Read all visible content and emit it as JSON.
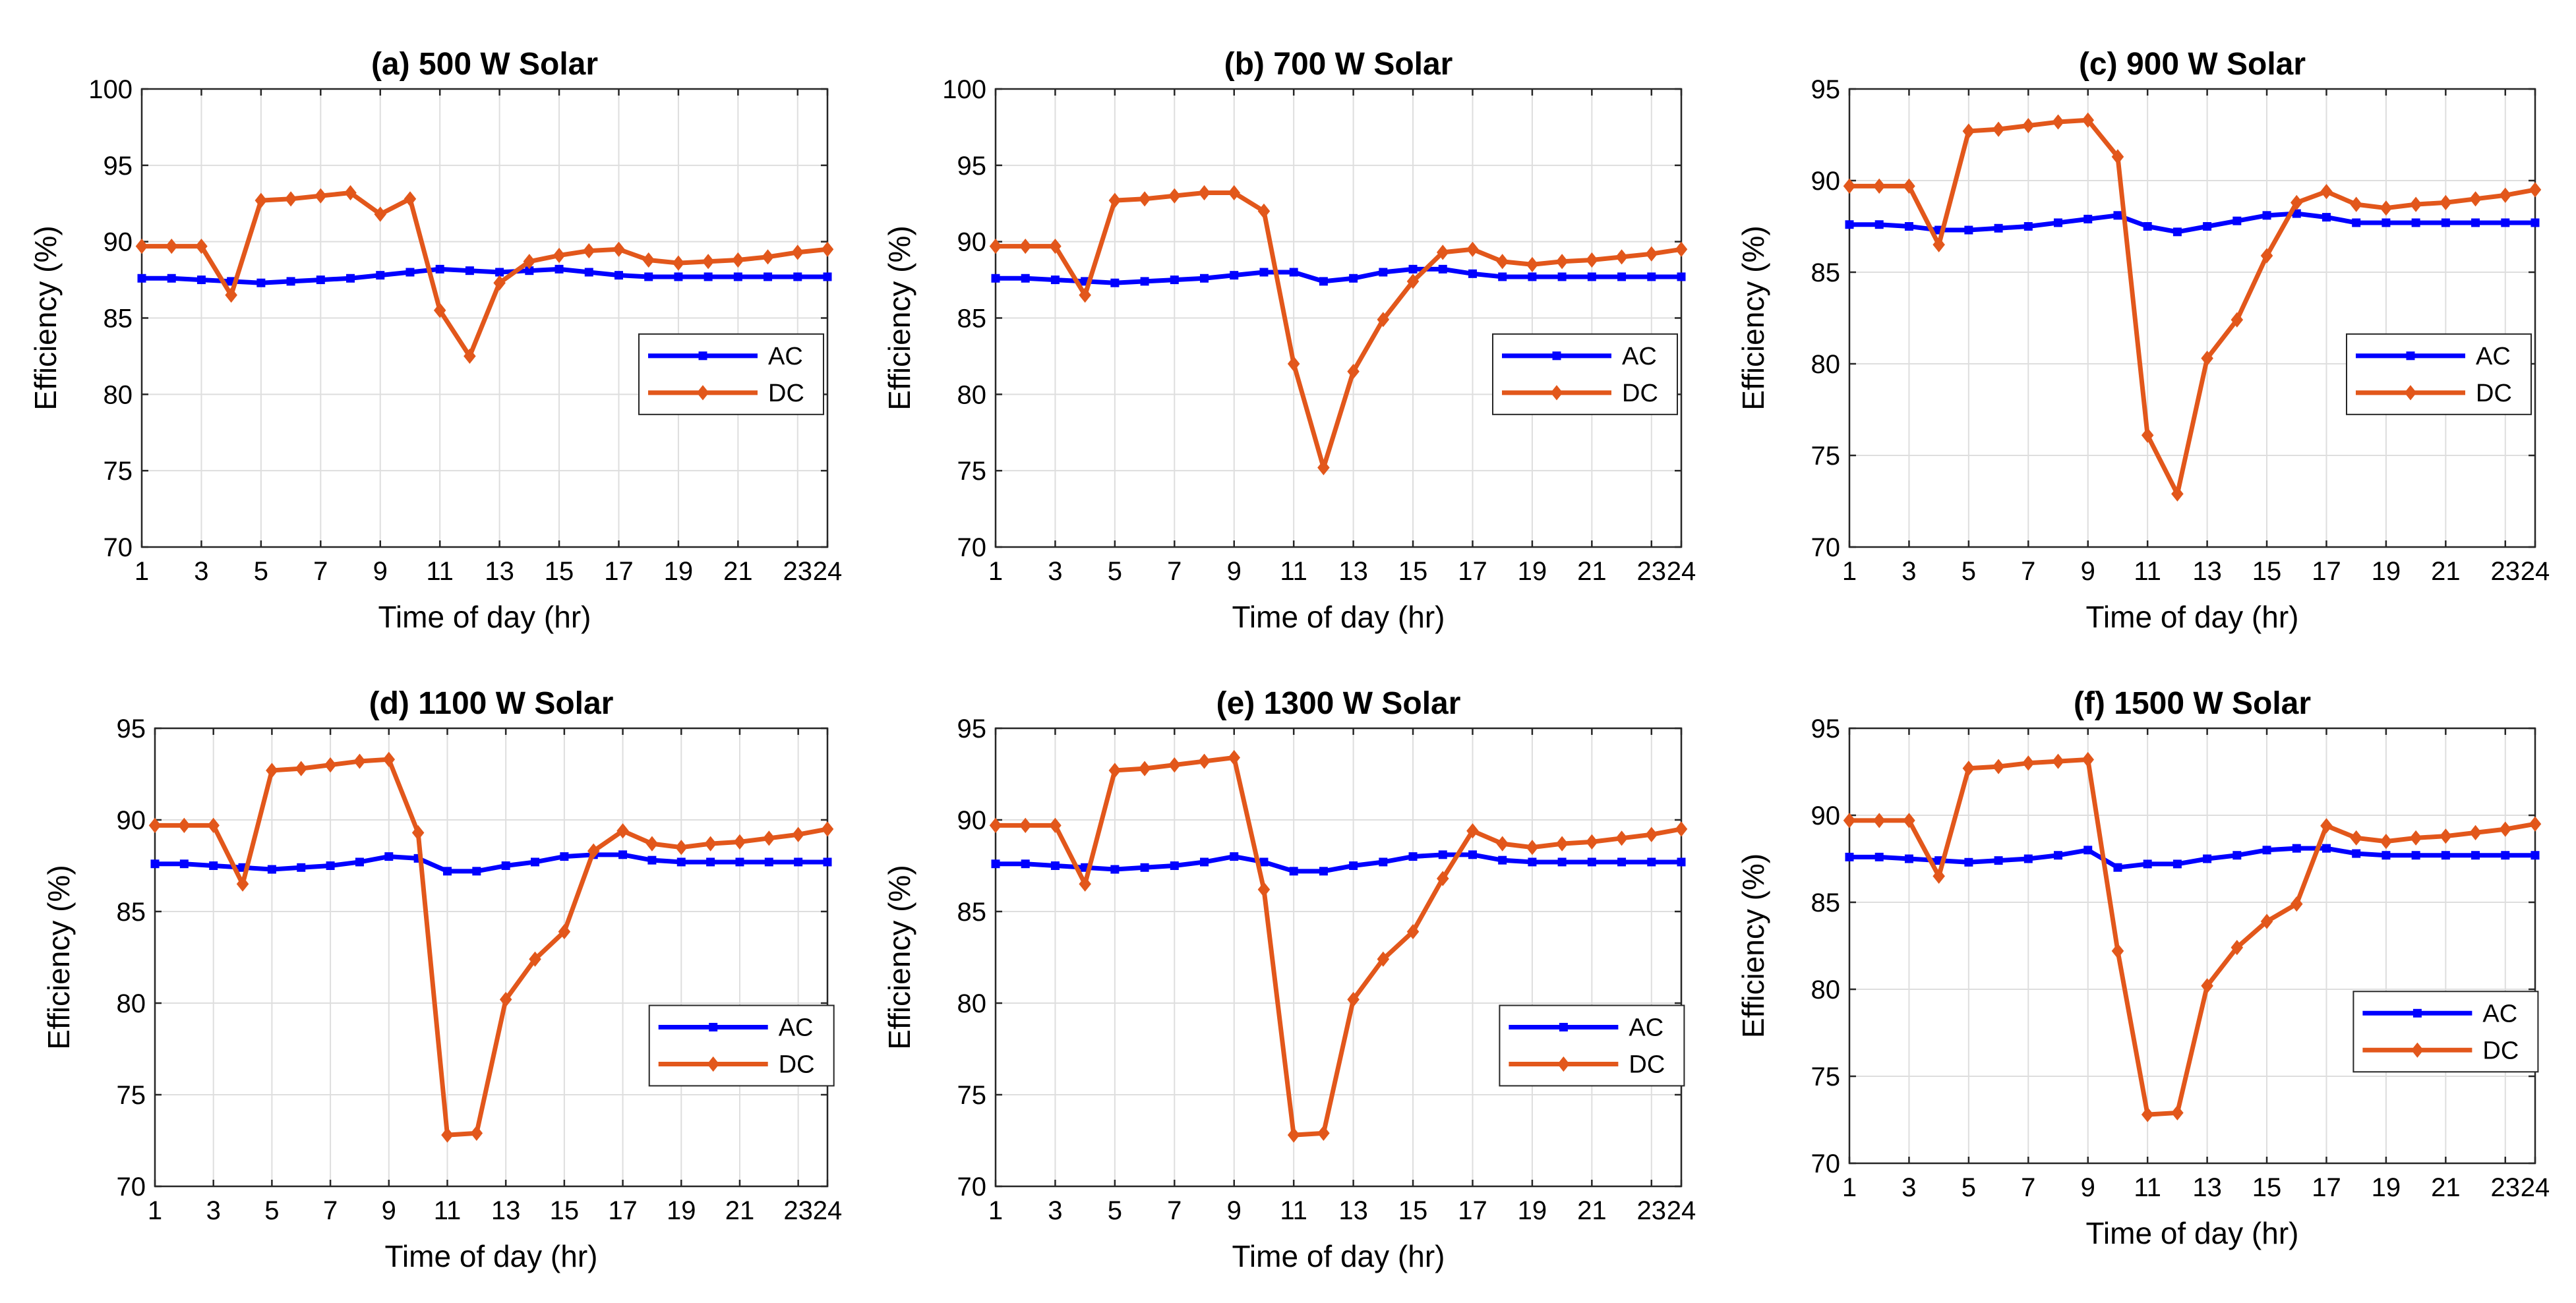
{
  "colors": {
    "ac": "#0000ff",
    "dc": "#e2571b",
    "grid": "#dedede",
    "axis": "#262626"
  },
  "chart_data": [
    {
      "type": "line",
      "title": "(a) 500 W Solar",
      "xlabel": "Time of day (hr)",
      "ylabel": "Efficiency (%)",
      "xlim": [
        1,
        24
      ],
      "ylim": [
        70,
        100
      ],
      "xticks": [
        "1",
        "3",
        "5",
        "7",
        "9",
        "11",
        "13",
        "15",
        "17",
        "19",
        "21",
        "23",
        "24"
      ],
      "yticks": [
        "70",
        "75",
        "80",
        "85",
        "90",
        "95",
        "100"
      ],
      "x": [
        1,
        2,
        3,
        4,
        5,
        6,
        7,
        8,
        9,
        10,
        11,
        12,
        13,
        14,
        15,
        16,
        17,
        18,
        19,
        20,
        21,
        22,
        23,
        24
      ],
      "series": [
        {
          "name": "AC",
          "marker": "square",
          "values": [
            87.6,
            87.6,
            87.5,
            87.4,
            87.3,
            87.4,
            87.5,
            87.6,
            87.8,
            88.0,
            88.2,
            88.1,
            88.0,
            88.1,
            88.2,
            88.0,
            87.8,
            87.7,
            87.7,
            87.7,
            87.7,
            87.7,
            87.7,
            87.7
          ]
        },
        {
          "name": "DC",
          "marker": "diamond",
          "values": [
            89.7,
            89.7,
            89.7,
            86.5,
            92.7,
            92.8,
            93.0,
            93.2,
            91.8,
            92.8,
            85.5,
            82.5,
            87.3,
            88.7,
            89.1,
            89.4,
            89.5,
            88.8,
            88.6,
            88.7,
            88.8,
            89.0,
            89.3,
            89.5
          ]
        }
      ],
      "legend": [
        "AC",
        "DC"
      ],
      "legend_position": "middle-right",
      "grid": true
    },
    {
      "type": "line",
      "title": "(b) 700 W Solar",
      "xlabel": "Time of day (hr)",
      "ylabel": "Efficiency (%)",
      "xlim": [
        1,
        24
      ],
      "ylim": [
        70,
        100
      ],
      "xticks": [
        "1",
        "3",
        "5",
        "7",
        "9",
        "11",
        "13",
        "15",
        "17",
        "19",
        "21",
        "23",
        "24"
      ],
      "yticks": [
        "70",
        "75",
        "80",
        "85",
        "90",
        "95",
        "100"
      ],
      "x": [
        1,
        2,
        3,
        4,
        5,
        6,
        7,
        8,
        9,
        10,
        11,
        12,
        13,
        14,
        15,
        16,
        17,
        18,
        19,
        20,
        21,
        22,
        23,
        24
      ],
      "series": [
        {
          "name": "AC",
          "marker": "square",
          "values": [
            87.6,
            87.6,
            87.5,
            87.4,
            87.3,
            87.4,
            87.5,
            87.6,
            87.8,
            88.0,
            88.0,
            87.4,
            87.6,
            88.0,
            88.2,
            88.2,
            87.9,
            87.7,
            87.7,
            87.7,
            87.7,
            87.7,
            87.7,
            87.7
          ]
        },
        {
          "name": "DC",
          "marker": "diamond",
          "values": [
            89.7,
            89.7,
            89.7,
            86.5,
            92.7,
            92.8,
            93.0,
            93.2,
            93.2,
            92.0,
            82.0,
            75.2,
            81.5,
            84.9,
            87.4,
            89.3,
            89.5,
            88.7,
            88.5,
            88.7,
            88.8,
            89.0,
            89.2,
            89.5
          ]
        }
      ],
      "legend": [
        "AC",
        "DC"
      ],
      "legend_position": "middle-right",
      "grid": true
    },
    {
      "type": "line",
      "title": "(c) 900 W Solar",
      "xlabel": "Time of day (hr)",
      "ylabel": "Efficiency (%)",
      "xlim": [
        1,
        24
      ],
      "ylim": [
        70,
        95
      ],
      "xticks": [
        "1",
        "3",
        "5",
        "7",
        "9",
        "11",
        "13",
        "15",
        "17",
        "19",
        "21",
        "23",
        "24"
      ],
      "yticks": [
        "70",
        "75",
        "80",
        "85",
        "90",
        "95"
      ],
      "x": [
        1,
        2,
        3,
        4,
        5,
        6,
        7,
        8,
        9,
        10,
        11,
        12,
        13,
        14,
        15,
        16,
        17,
        18,
        19,
        20,
        21,
        22,
        23,
        24
      ],
      "series": [
        {
          "name": "AC",
          "marker": "square",
          "values": [
            87.6,
            87.6,
            87.5,
            87.3,
            87.3,
            87.4,
            87.5,
            87.7,
            87.9,
            88.1,
            87.5,
            87.2,
            87.5,
            87.8,
            88.1,
            88.2,
            88.0,
            87.7,
            87.7,
            87.7,
            87.7,
            87.7,
            87.7,
            87.7
          ]
        },
        {
          "name": "DC",
          "marker": "diamond",
          "values": [
            89.7,
            89.7,
            89.7,
            86.5,
            92.7,
            92.8,
            93.0,
            93.2,
            93.3,
            91.3,
            76.1,
            72.9,
            80.3,
            82.4,
            85.9,
            88.8,
            89.4,
            88.7,
            88.5,
            88.7,
            88.8,
            89.0,
            89.2,
            89.5
          ]
        }
      ],
      "legend": [
        "AC",
        "DC"
      ],
      "legend_position": "middle-right",
      "grid": true
    },
    {
      "type": "line",
      "title": "(d) 1100 W Solar",
      "xlabel": "Time of day (hr)",
      "ylabel": "Efficiency (%)",
      "xlim": [
        1,
        24
      ],
      "ylim": [
        70,
        95
      ],
      "xticks": [
        "1",
        "3",
        "5",
        "7",
        "9",
        "11",
        "13",
        "15",
        "17",
        "19",
        "21",
        "23",
        "24"
      ],
      "yticks": [
        "70",
        "75",
        "80",
        "85",
        "90",
        "95"
      ],
      "x": [
        1,
        2,
        3,
        4,
        5,
        6,
        7,
        8,
        9,
        10,
        11,
        12,
        13,
        14,
        15,
        16,
        17,
        18,
        19,
        20,
        21,
        22,
        23,
        24
      ],
      "series": [
        {
          "name": "AC",
          "marker": "square",
          "values": [
            87.6,
            87.6,
            87.5,
            87.4,
            87.3,
            87.4,
            87.5,
            87.7,
            88.0,
            87.9,
            87.2,
            87.2,
            87.5,
            87.7,
            88.0,
            88.1,
            88.1,
            87.8,
            87.7,
            87.7,
            87.7,
            87.7,
            87.7,
            87.7
          ]
        },
        {
          "name": "DC",
          "marker": "diamond",
          "values": [
            89.7,
            89.7,
            89.7,
            86.5,
            92.7,
            92.8,
            93.0,
            93.2,
            93.3,
            89.3,
            72.8,
            72.9,
            80.2,
            82.4,
            83.9,
            88.3,
            89.4,
            88.7,
            88.5,
            88.7,
            88.8,
            89.0,
            89.2,
            89.5
          ]
        }
      ],
      "legend": [
        "AC",
        "DC"
      ],
      "legend_position": "lower-right",
      "grid": true
    },
    {
      "type": "line",
      "title": "(e) 1300 W Solar",
      "xlabel": "Time of day (hr)",
      "ylabel": "Efficiency (%)",
      "xlim": [
        1,
        24
      ],
      "ylim": [
        70,
        95
      ],
      "xticks": [
        "1",
        "3",
        "5",
        "7",
        "9",
        "11",
        "13",
        "15",
        "17",
        "19",
        "21",
        "23",
        "24"
      ],
      "yticks": [
        "70",
        "75",
        "80",
        "85",
        "90",
        "95"
      ],
      "x": [
        1,
        2,
        3,
        4,
        5,
        6,
        7,
        8,
        9,
        10,
        11,
        12,
        13,
        14,
        15,
        16,
        17,
        18,
        19,
        20,
        21,
        22,
        23,
        24
      ],
      "series": [
        {
          "name": "AC",
          "marker": "square",
          "values": [
            87.6,
            87.6,
            87.5,
            87.4,
            87.3,
            87.4,
            87.5,
            87.7,
            88.0,
            87.7,
            87.2,
            87.2,
            87.5,
            87.7,
            88.0,
            88.1,
            88.1,
            87.8,
            87.7,
            87.7,
            87.7,
            87.7,
            87.7,
            87.7
          ]
        },
        {
          "name": "DC",
          "marker": "diamond",
          "values": [
            89.7,
            89.7,
            89.7,
            86.5,
            92.7,
            92.8,
            93.0,
            93.2,
            93.4,
            86.2,
            72.8,
            72.9,
            80.2,
            82.4,
            83.9,
            86.8,
            89.4,
            88.7,
            88.5,
            88.7,
            88.8,
            89.0,
            89.2,
            89.5
          ]
        }
      ],
      "legend": [
        "AC",
        "DC"
      ],
      "legend_position": "lower-right",
      "grid": true
    },
    {
      "type": "line",
      "title": "(f) 1500 W Solar",
      "xlabel": "Time of day (hr)",
      "ylabel": "Efficiency (%)",
      "xlim": [
        1,
        24
      ],
      "ylim": [
        70,
        95
      ],
      "xticks": [
        "1",
        "3",
        "5",
        "7",
        "9",
        "11",
        "13",
        "15",
        "17",
        "19",
        "21",
        "23",
        "24"
      ],
      "yticks": [
        "70",
        "75",
        "80",
        "85",
        "90",
        "95"
      ],
      "x": [
        1,
        2,
        3,
        4,
        5,
        6,
        7,
        8,
        9,
        10,
        11,
        12,
        13,
        14,
        15,
        16,
        17,
        18,
        19,
        20,
        21,
        22,
        23,
        24
      ],
      "series": [
        {
          "name": "AC",
          "marker": "square",
          "values": [
            87.6,
            87.6,
            87.5,
            87.4,
            87.3,
            87.4,
            87.5,
            87.7,
            88.0,
            87.0,
            87.2,
            87.2,
            87.5,
            87.7,
            88.0,
            88.1,
            88.1,
            87.8,
            87.7,
            87.7,
            87.7,
            87.7,
            87.7,
            87.7
          ]
        },
        {
          "name": "DC",
          "marker": "diamond",
          "values": [
            89.7,
            89.7,
            89.7,
            86.5,
            92.7,
            92.8,
            93.0,
            93.1,
            93.2,
            82.2,
            72.8,
            72.9,
            80.2,
            82.4,
            83.9,
            84.9,
            89.4,
            88.7,
            88.5,
            88.7,
            88.8,
            89.0,
            89.2,
            89.5
          ]
        }
      ],
      "legend": [
        "AC",
        "DC"
      ],
      "legend_position": "lower-right",
      "grid": true
    }
  ]
}
